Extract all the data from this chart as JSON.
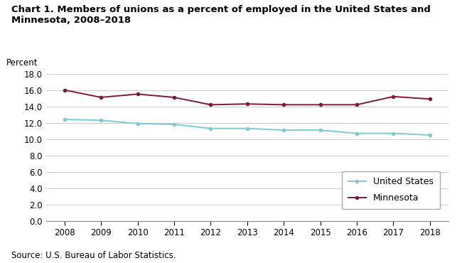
{
  "title_line1": "Chart 1. Members of unions as a percent of employed in the United States and Minnesota, 2008–2018",
  "ylabel": "Percent",
  "source": "Source: U.S. Bureau of Labor Statistics.",
  "years": [
    2008,
    2009,
    2010,
    2011,
    2012,
    2013,
    2014,
    2015,
    2016,
    2017,
    2018
  ],
  "us_values": [
    12.4,
    12.3,
    11.9,
    11.8,
    11.3,
    11.3,
    11.1,
    11.1,
    10.7,
    10.7,
    10.5
  ],
  "mn_values": [
    16.0,
    15.1,
    15.5,
    15.1,
    14.2,
    14.3,
    14.2,
    14.2,
    14.2,
    15.2,
    14.9
  ],
  "us_color": "#7ec8d8",
  "mn_color": "#7b1a3e",
  "us_label": "United States",
  "mn_label": "Minnesota",
  "ylim": [
    0,
    18.0
  ],
  "yticks": [
    0.0,
    2.0,
    4.0,
    6.0,
    8.0,
    10.0,
    12.0,
    14.0,
    16.0,
    18.0
  ],
  "background_color": "#ffffff",
  "plot_bg_color": "#ffffff",
  "grid_color": "#c8c8c8",
  "title_fontsize": 9.5,
  "tick_fontsize": 8.5,
  "legend_fontsize": 9,
  "source_fontsize": 8.5
}
